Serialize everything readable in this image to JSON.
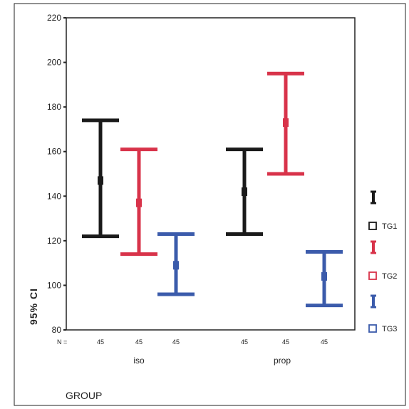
{
  "chart_data": {
    "type": "errorbar",
    "ylabel": "95% CI",
    "xlabel": "GROUP",
    "ylim": [
      80,
      220
    ],
    "yticks": [
      80,
      100,
      120,
      140,
      160,
      180,
      200,
      220
    ],
    "n_label": "N =",
    "groups": [
      "iso",
      "prop"
    ],
    "series": [
      {
        "name": "TG1",
        "color": "#1a1a1a",
        "n": [
          "45",
          "45"
        ],
        "lower": [
          122,
          123
        ],
        "mean": [
          147,
          142
        ],
        "upper": [
          174,
          161
        ]
      },
      {
        "name": "TG2",
        "color": "#d8334a",
        "n": [
          "45",
          "45"
        ],
        "lower": [
          114,
          150
        ],
        "mean": [
          137,
          173
        ],
        "upper": [
          161,
          195
        ]
      },
      {
        "name": "TG3",
        "color": "#3b5bab",
        "n": [
          "45",
          "45"
        ],
        "lower": [
          96,
          91
        ],
        "mean": [
          109,
          104
        ],
        "upper": [
          123,
          115
        ]
      }
    ],
    "legend_position": "right"
  }
}
